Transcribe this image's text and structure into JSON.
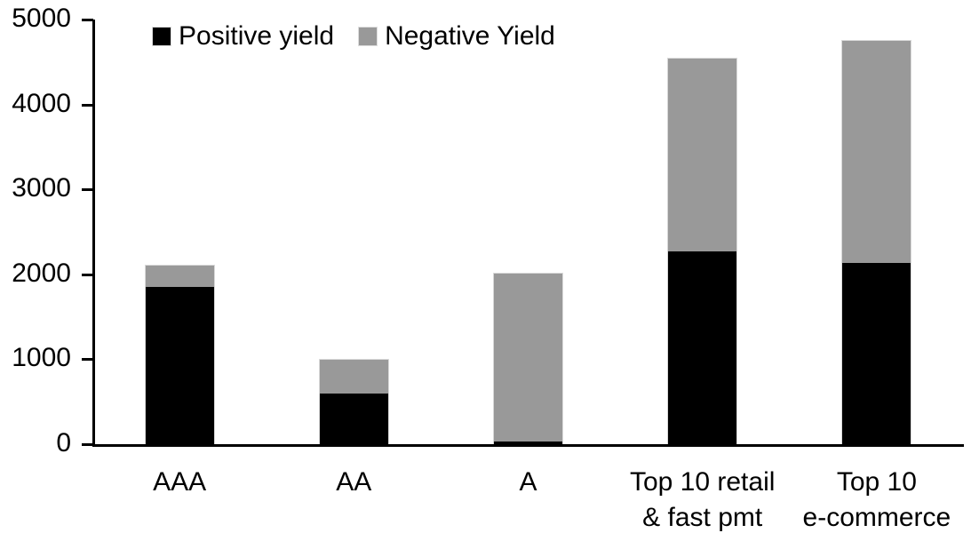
{
  "chart_data": {
    "type": "bar",
    "stacked": true,
    "categories": [
      "AAA",
      "AA",
      "A",
      "Top 10 retail\n& fast pmt",
      "Top 10\ne-commerce"
    ],
    "series": [
      {
        "name": "Positive yield",
        "color": "#000000",
        "values": [
          1860,
          600,
          30,
          2270,
          2140
        ]
      },
      {
        "name": "Negative Yield",
        "color": "#999999",
        "values": [
          250,
          400,
          1990,
          2280,
          2620
        ]
      }
    ],
    "xlabel": "",
    "ylabel": "",
    "ylim": [
      0,
      5000
    ],
    "yticks": [
      0,
      1000,
      2000,
      3000,
      4000,
      5000
    ],
    "legend_position": "top",
    "grid": false,
    "colors": {
      "axis": "#000000",
      "bar_outline": "#d9d9d9",
      "background": "#ffffff"
    }
  }
}
